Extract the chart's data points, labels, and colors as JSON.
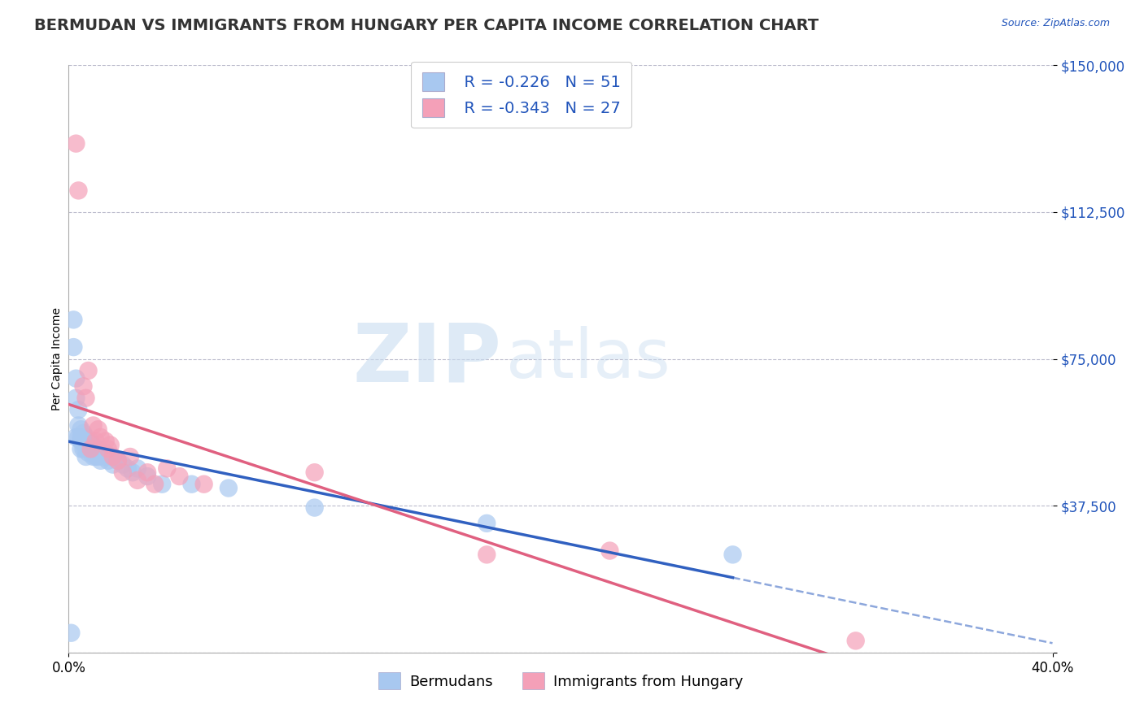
{
  "title": "BERMUDAN VS IMMIGRANTS FROM HUNGARY PER CAPITA INCOME CORRELATION CHART",
  "source_text": "Source: ZipAtlas.com",
  "ylabel": "Per Capita Income",
  "xlim": [
    0.0,
    0.4
  ],
  "ylim": [
    0,
    150000
  ],
  "xtick_positions": [
    0.0,
    0.4
  ],
  "xtick_labels": [
    "0.0%",
    "40.0%"
  ],
  "ytick_positions": [
    0,
    37500,
    75000,
    112500,
    150000
  ],
  "ytick_labels": [
    "",
    "$37,500",
    "$75,000",
    "$112,500",
    "$150,000"
  ],
  "bottom_legend_blue": "Bermudans",
  "bottom_legend_pink": "Immigrants from Hungary",
  "blue_color": "#A8C8F0",
  "pink_color": "#F4A0B8",
  "blue_line_color": "#3060C0",
  "pink_line_color": "#E06080",
  "background_color": "#FFFFFF",
  "grid_color": "#BBBBCC",
  "watermark_ZIP": "ZIP",
  "watermark_atlas": "atlas",
  "blue_scatter_x": [
    0.001,
    0.002,
    0.002,
    0.003,
    0.003,
    0.003,
    0.004,
    0.004,
    0.004,
    0.005,
    0.005,
    0.005,
    0.005,
    0.006,
    0.006,
    0.006,
    0.007,
    0.007,
    0.007,
    0.007,
    0.008,
    0.008,
    0.008,
    0.009,
    0.009,
    0.01,
    0.01,
    0.01,
    0.011,
    0.011,
    0.012,
    0.012,
    0.013,
    0.013,
    0.014,
    0.015,
    0.016,
    0.017,
    0.018,
    0.02,
    0.022,
    0.024,
    0.026,
    0.028,
    0.032,
    0.038,
    0.05,
    0.065,
    0.1,
    0.17,
    0.27
  ],
  "blue_scatter_y": [
    5000,
    85000,
    78000,
    70000,
    65000,
    55000,
    62000,
    58000,
    55000,
    57000,
    55000,
    54000,
    52000,
    56000,
    54000,
    52000,
    55000,
    54000,
    52000,
    50000,
    54000,
    53000,
    51000,
    54000,
    52000,
    53000,
    52000,
    50000,
    52000,
    50000,
    52000,
    50000,
    51000,
    49000,
    50000,
    51000,
    49000,
    50000,
    48000,
    49000,
    48000,
    47000,
    46000,
    47000,
    45000,
    43000,
    43000,
    42000,
    37000,
    33000,
    25000
  ],
  "pink_scatter_x": [
    0.003,
    0.004,
    0.006,
    0.007,
    0.008,
    0.009,
    0.01,
    0.011,
    0.012,
    0.013,
    0.015,
    0.016,
    0.017,
    0.018,
    0.02,
    0.022,
    0.025,
    0.028,
    0.032,
    0.035,
    0.04,
    0.045,
    0.055,
    0.1,
    0.17,
    0.22,
    0.32
  ],
  "pink_scatter_y": [
    130000,
    118000,
    68000,
    65000,
    72000,
    52000,
    58000,
    54000,
    57000,
    55000,
    54000,
    52000,
    53000,
    50000,
    49000,
    46000,
    50000,
    44000,
    46000,
    43000,
    47000,
    45000,
    43000,
    46000,
    25000,
    26000,
    3000
  ],
  "title_fontsize": 14,
  "axis_label_fontsize": 10,
  "tick_fontsize": 12,
  "legend_fontsize": 14
}
